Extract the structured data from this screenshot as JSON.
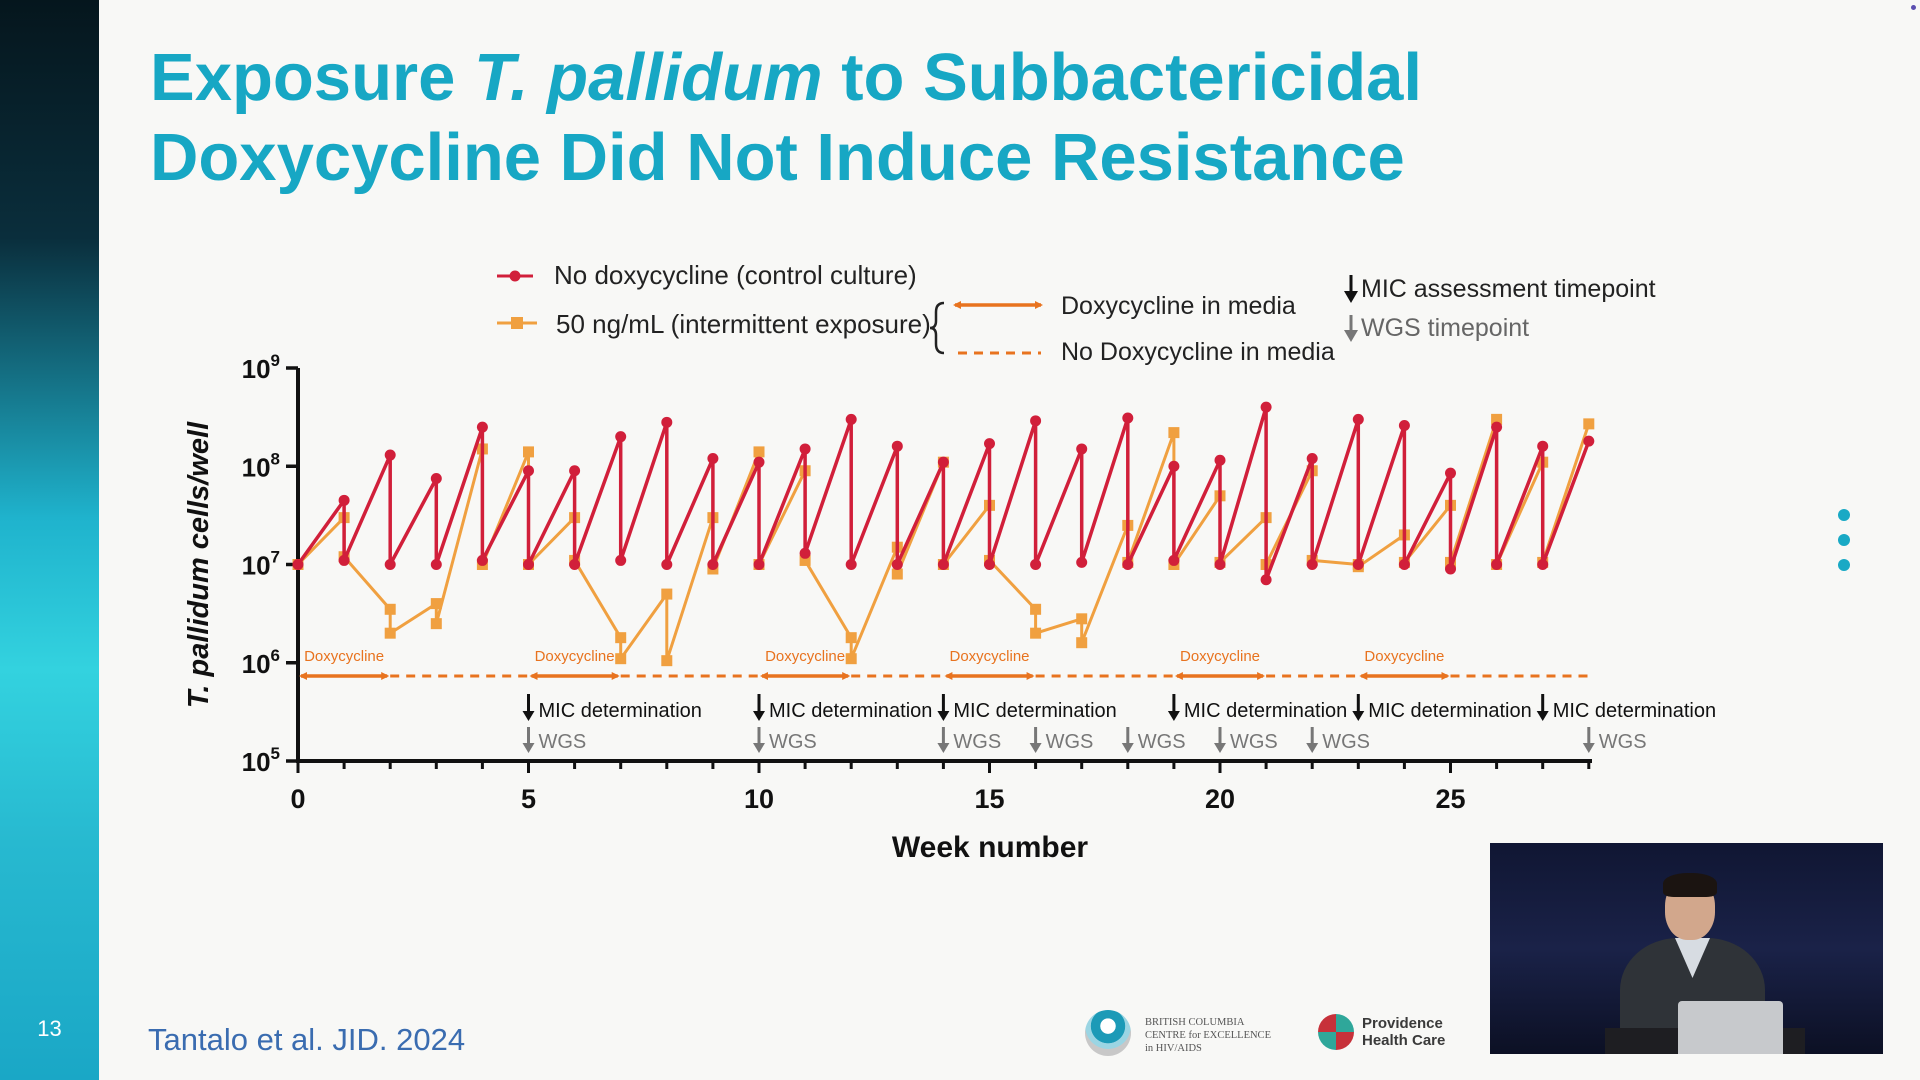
{
  "slide": {
    "number": "13",
    "title_part1": "Exposure ",
    "title_italic": "T. pallidum",
    "title_part2": " to Subbactericidal",
    "title_line2": "Doxycycline Did Not Induce Resistance",
    "citation": "Tantalo et al. JID. 2024",
    "logo_bc_lines": [
      "BRITISH COLUMBIA",
      "CENTRE for EXCELLENCE",
      "in HIV/AIDS"
    ],
    "logo_ph_lines": [
      "Providence",
      "Health Care"
    ]
  },
  "icons": {
    "more_menu": "vertical-ellipsis-icon",
    "video": "presenter-video-thumbnail"
  },
  "chart_data": {
    "type": "line",
    "ylabel": "T. pallidum cells/well",
    "xlabel": "Week number",
    "y_scale": "log",
    "ylim": [
      100000,
      1000000000
    ],
    "xlim": [
      0,
      28
    ],
    "xticks": [
      0,
      5,
      10,
      15,
      20,
      25
    ],
    "xtick_labels": [
      "0",
      "5",
      "10",
      "15",
      "20",
      "25"
    ],
    "yticks": [
      5,
      6,
      7,
      8,
      9
    ],
    "ytick_base": "10",
    "colors": {
      "control": "#d11f3a",
      "exposure": "#f0a040",
      "doxy_arrow": "#e8731f"
    },
    "legend": {
      "control": "No doxycycline (control culture)",
      "exposure": "50 ng/mL (intermittent exposure)",
      "doxy_in_media": "Doxycycline in media",
      "no_doxy_in_media": "No Doxycycline in media",
      "mic_timepoint": "MIC assessment timepoint",
      "wgs_timepoint": "WGS timepoint"
    },
    "series": [
      {
        "name": "No doxycycline (control culture)",
        "points": [
          [
            0,
            10000000
          ],
          [
            1,
            45000000
          ],
          [
            1,
            11000000
          ],
          [
            2,
            130000000
          ],
          [
            2,
            10000000
          ],
          [
            3,
            75000000
          ],
          [
            3,
            10000000
          ],
          [
            4,
            250000000
          ],
          [
            4,
            11000000
          ],
          [
            5,
            90000000
          ],
          [
            5,
            10000000
          ],
          [
            6,
            90000000
          ],
          [
            6,
            10000000
          ],
          [
            7,
            200000000
          ],
          [
            7,
            11000000
          ],
          [
            8,
            280000000
          ],
          [
            8,
            10000000
          ],
          [
            9,
            120000000
          ],
          [
            9,
            10000000
          ],
          [
            10,
            110000000
          ],
          [
            10,
            10000000
          ],
          [
            11,
            150000000
          ],
          [
            11,
            13000000
          ],
          [
            12,
            300000000
          ],
          [
            12,
            10000000
          ],
          [
            13,
            160000000
          ],
          [
            13,
            10000000
          ],
          [
            14,
            110000000
          ],
          [
            14,
            10000000
          ],
          [
            15,
            170000000
          ],
          [
            15,
            10000000
          ],
          [
            16,
            290000000
          ],
          [
            16,
            10000000
          ],
          [
            17,
            150000000
          ],
          [
            17,
            10500000
          ],
          [
            18,
            310000000
          ],
          [
            18,
            10000000
          ],
          [
            19,
            100000000
          ],
          [
            19,
            11000000
          ],
          [
            20,
            115000000
          ],
          [
            20,
            10000000
          ],
          [
            21,
            400000000
          ],
          [
            21,
            7000000
          ],
          [
            22,
            120000000
          ],
          [
            22,
            10000000
          ],
          [
            23,
            300000000
          ],
          [
            23,
            10000000
          ],
          [
            24,
            260000000
          ],
          [
            24,
            10000000
          ],
          [
            25,
            85000000
          ],
          [
            25,
            9000000
          ],
          [
            26,
            250000000
          ],
          [
            26,
            10000000
          ],
          [
            27,
            160000000
          ],
          [
            27,
            10000000
          ],
          [
            28,
            180000000
          ]
        ]
      },
      {
        "name": "50 ng/mL (intermittent exposure)",
        "points": [
          [
            0,
            10000000
          ],
          [
            1,
            30000000
          ],
          [
            1,
            12000000
          ],
          [
            2,
            3500000
          ],
          [
            2,
            2000000
          ],
          [
            3,
            4000000
          ],
          [
            3,
            2500000
          ],
          [
            4,
            150000000
          ],
          [
            4,
            10000000
          ],
          [
            5,
            140000000
          ],
          [
            5,
            10000000
          ],
          [
            6,
            30000000
          ],
          [
            6,
            11000000
          ],
          [
            7,
            1800000
          ],
          [
            7,
            1100000
          ],
          [
            8,
            5000000
          ],
          [
            8,
            1050000
          ],
          [
            9,
            30000000
          ],
          [
            9,
            9000000
          ],
          [
            10,
            140000000
          ],
          [
            10,
            10000000
          ],
          [
            11,
            90000000
          ],
          [
            11,
            11000000
          ],
          [
            12,
            1800000
          ],
          [
            12,
            1100000
          ],
          [
            13,
            15000000
          ],
          [
            13,
            8000000
          ],
          [
            14,
            110000000
          ],
          [
            14,
            10000000
          ],
          [
            15,
            40000000
          ],
          [
            15,
            11000000
          ],
          [
            16,
            3500000
          ],
          [
            16,
            2000000
          ],
          [
            17,
            2800000
          ],
          [
            17,
            1600000
          ],
          [
            18,
            25000000
          ],
          [
            18,
            10500000
          ],
          [
            19,
            220000000
          ],
          [
            19,
            10000000
          ],
          [
            20,
            50000000
          ],
          [
            20,
            10500000
          ],
          [
            21,
            30000000
          ],
          [
            21,
            10000000
          ],
          [
            22,
            90000000
          ],
          [
            22,
            11000000
          ],
          [
            23,
            10000000
          ],
          [
            23,
            9500000
          ],
          [
            24,
            20000000
          ],
          [
            24,
            10500000
          ],
          [
            25,
            40000000
          ],
          [
            25,
            10500000
          ],
          [
            26,
            300000000
          ],
          [
            26,
            10000000
          ],
          [
            27,
            110000000
          ],
          [
            27,
            10500000
          ],
          [
            28,
            270000000
          ]
        ]
      }
    ],
    "dosing_periods": [
      {
        "label": "Doxycycline",
        "start": 0,
        "end": 2
      },
      {
        "label": "Doxycycline",
        "start": 5,
        "end": 7
      },
      {
        "label": "Doxycycline",
        "start": 10,
        "end": 12
      },
      {
        "label": "Doxycycline",
        "start": 14,
        "end": 16
      },
      {
        "label": "Doxycycline",
        "start": 19,
        "end": 21
      },
      {
        "label": "Doxycycline",
        "start": 23,
        "end": 25
      }
    ],
    "no_doxy_dashed_until": 28,
    "mic_determination_label": "MIC determination",
    "mic_weeks": [
      5,
      10,
      14,
      19,
      23,
      27
    ],
    "wgs_label": "WGS",
    "wgs_weeks": [
      5,
      10,
      14,
      16,
      18,
      20,
      22,
      28
    ]
  }
}
